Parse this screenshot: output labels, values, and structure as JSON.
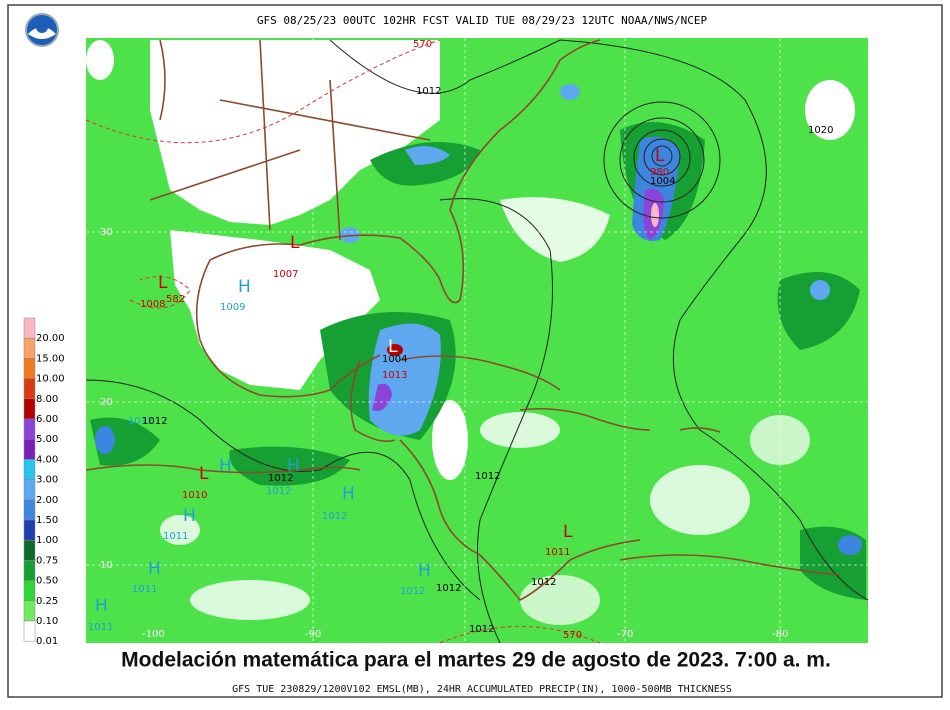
{
  "header": {
    "title": "GFS 08/25/23 00UTC 102HR FCST VALID TUE 08/29/23 12UTC NOAA/NWS/NCEP"
  },
  "legend": {
    "items": [
      {
        "label": "20.00",
        "color": "#f7b7c4"
      },
      {
        "label": "15.00",
        "color": "#f6a36a"
      },
      {
        "label": "10.00",
        "color": "#f07a1c"
      },
      {
        "label": "8.00",
        "color": "#d93a10"
      },
      {
        "label": "6.00",
        "color": "#b40000"
      },
      {
        "label": "5.00",
        "color": "#8c44d8"
      },
      {
        "label": "4.00",
        "color": "#7a1fb8"
      },
      {
        "label": "3.00",
        "color": "#27c3ea"
      },
      {
        "label": "2.00",
        "color": "#5ea8f0"
      },
      {
        "label": "1.50",
        "color": "#3d86e0"
      },
      {
        "label": "1.00",
        "color": "#1f3fb0"
      },
      {
        "label": "0.75",
        "color": "#0f6a2a"
      },
      {
        "label": "0.50",
        "color": "#16a033"
      },
      {
        "label": "0.25",
        "color": "#2ed63a"
      },
      {
        "label": "0.10",
        "color": "#70ec62"
      },
      {
        "label": "0.01",
        "color": "#ffffff"
      }
    ]
  },
  "map_labels": [
    "570",
    "1012",
    "1020",
    "L",
    "980",
    "1004",
    "30",
    "L",
    "1007",
    "L",
    "1008",
    "582",
    "H",
    "1009",
    "L",
    "1004",
    "1013",
    "20",
    "1012",
    "1012",
    "L",
    "1010",
    "H",
    "H",
    "1012",
    "1012",
    "H",
    "1012",
    "H",
    "1011",
    "1012",
    "10",
    "H",
    "1011",
    "H",
    "1011",
    "H",
    "1012",
    "1012",
    "1012",
    "L",
    "1011",
    "1012",
    "570",
    "-100",
    "-90",
    "-80",
    "-70"
  ],
  "caption": "Modelación matemática para el martes 29 de agosto de 2023. 7:00 a. m.",
  "footer": "GFS TUE 230829/1200V102 EMSL(MB), 24HR ACCUMULATED PRECIP(IN), 1000-500MB THICKNESS"
}
